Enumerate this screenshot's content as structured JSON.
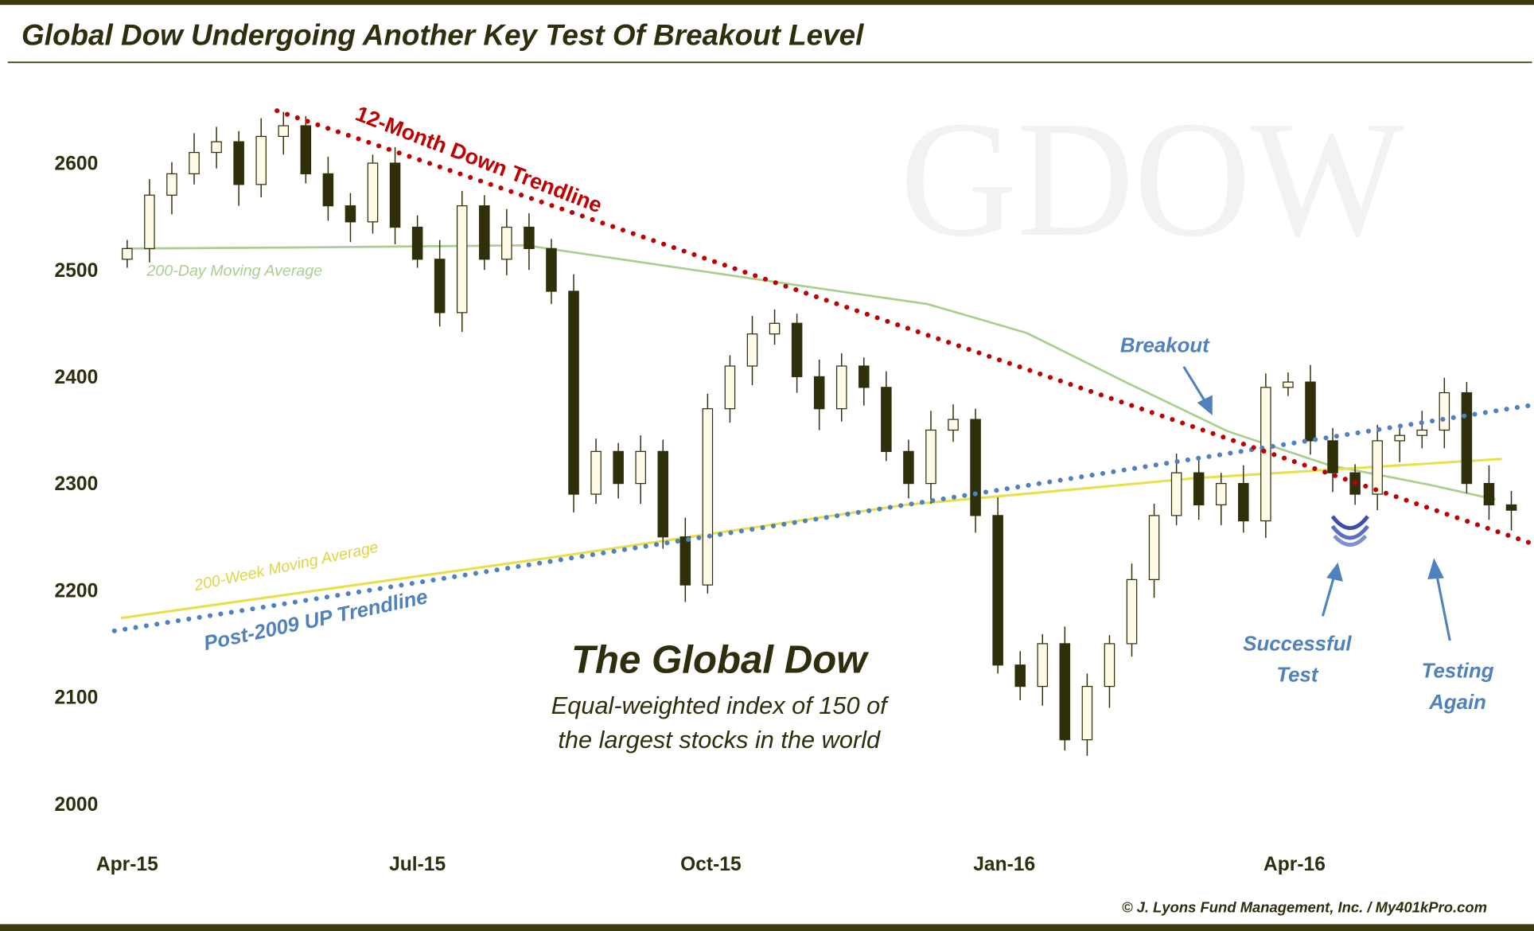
{
  "header": {
    "title": "Global Dow Undergoing Another Key Test Of Breakout Level"
  },
  "watermark": "GDOW",
  "footer": {
    "credit": "© J. Lyons Fund Management, Inc. / My401kPro.com"
  },
  "colors": {
    "frame": "#3b3b12",
    "candle": "#2f2f0a",
    "down_trendline": "#c00000",
    "up_trendline": "#4f81bd",
    "ma200d": "#a9cf8e",
    "ma200w": "#e8e04a",
    "annotation": "#4f81bd"
  },
  "chart_data": {
    "type": "candlestick",
    "title": "The Global Dow",
    "subtitle_lines": [
      "Equal-weighted index of 150 of",
      "the largest stocks in the world"
    ],
    "y_ticks": [
      2000,
      2100,
      2200,
      2300,
      2400,
      2500,
      2600
    ],
    "ylim": [
      2000,
      2650
    ],
    "x_ticks": [
      {
        "label": "Apr-15",
        "date": "2015-04-01"
      },
      {
        "label": "Jul-15",
        "date": "2015-07-01"
      },
      {
        "label": "Oct-15",
        "date": "2015-10-01"
      },
      {
        "label": "Jan-16",
        "date": "2016-01-01"
      },
      {
        "label": "Apr-16",
        "date": "2016-04-01"
      }
    ],
    "grid": false,
    "weekly_close": {
      "dates": [
        "2015-04-01",
        "2015-04-08",
        "2015-04-15",
        "2015-04-22",
        "2015-04-29",
        "2015-05-06",
        "2015-05-13",
        "2015-05-20",
        "2015-05-27",
        "2015-06-03",
        "2015-06-10",
        "2015-06-17",
        "2015-06-24",
        "2015-07-01",
        "2015-07-08",
        "2015-07-15",
        "2015-07-22",
        "2015-07-29",
        "2015-08-05",
        "2015-08-12",
        "2015-08-19",
        "2015-08-26",
        "2015-09-02",
        "2015-09-09",
        "2015-09-16",
        "2015-09-23",
        "2015-09-30",
        "2015-10-07",
        "2015-10-14",
        "2015-10-21",
        "2015-10-28",
        "2015-11-04",
        "2015-11-11",
        "2015-11-18",
        "2015-11-25",
        "2015-12-02",
        "2015-12-09",
        "2015-12-16",
        "2015-12-23",
        "2015-12-30",
        "2016-01-06",
        "2016-01-13",
        "2016-01-20",
        "2016-01-27",
        "2016-02-03",
        "2016-02-10",
        "2016-02-17",
        "2016-02-24",
        "2016-03-02",
        "2016-03-09",
        "2016-03-16",
        "2016-03-23",
        "2016-03-30",
        "2016-04-06",
        "2016-04-13",
        "2016-04-20",
        "2016-04-27",
        "2016-05-04",
        "2016-05-11",
        "2016-05-18",
        "2016-05-25",
        "2016-06-01",
        "2016-06-08"
      ],
      "close": [
        2520,
        2570,
        2590,
        2610,
        2620,
        2580,
        2625,
        2635,
        2590,
        2560,
        2545,
        2600,
        2540,
        2510,
        2460,
        2560,
        2510,
        2540,
        2520,
        2480,
        2290,
        2330,
        2300,
        2330,
        2250,
        2205,
        2370,
        2410,
        2440,
        2450,
        2400,
        2370,
        2410,
        2390,
        2330,
        2300,
        2350,
        2360,
        2270,
        2130,
        2110,
        2150,
        2060,
        2110,
        2150,
        2210,
        2270,
        2310,
        2280,
        2300,
        2265,
        2390,
        2395,
        2340,
        2310,
        2290,
        2340,
        2345,
        2350,
        2385,
        2300,
        2280,
        2275
      ]
    },
    "series": [
      {
        "name": "200-Day Moving Average",
        "type": "line",
        "dates": [
          "2015-04-01",
          "2015-05-24",
          "2015-08-04",
          "2015-11-01",
          "2015-12-08",
          "2016-01-08",
          "2016-02-08",
          "2016-03-11",
          "2016-04-12",
          "2016-05-13",
          "2016-06-03"
        ],
        "values": [
          2520,
          2521,
          2523,
          2484,
          2468,
          2441,
          2395,
          2349,
          2317,
          2299,
          2285
        ]
      },
      {
        "name": "200-Week Moving Average",
        "type": "line",
        "dates": [
          "2015-03-30",
          "2015-08-15",
          "2015-12-01",
          "2016-03-01",
          "2016-06-05"
        ],
        "values": [
          2174,
          2232,
          2280,
          2305,
          2323
        ]
      },
      {
        "name": "12-Month Down Trendline",
        "type": "dotted-line",
        "dates": [
          "2015-05-18",
          "2016-06-22"
        ],
        "values": [
          2649,
          2236
        ]
      },
      {
        "name": "Post-2009 UP Trendline",
        "type": "dotted-line",
        "dates": [
          "2015-03-28",
          "2016-06-22"
        ],
        "values": [
          2162,
          2377
        ]
      }
    ],
    "annotations": {
      "breakout": "Breakout",
      "successful_test": [
        "Successful",
        "Test"
      ],
      "testing_again": [
        "Testing",
        "Again"
      ]
    }
  }
}
